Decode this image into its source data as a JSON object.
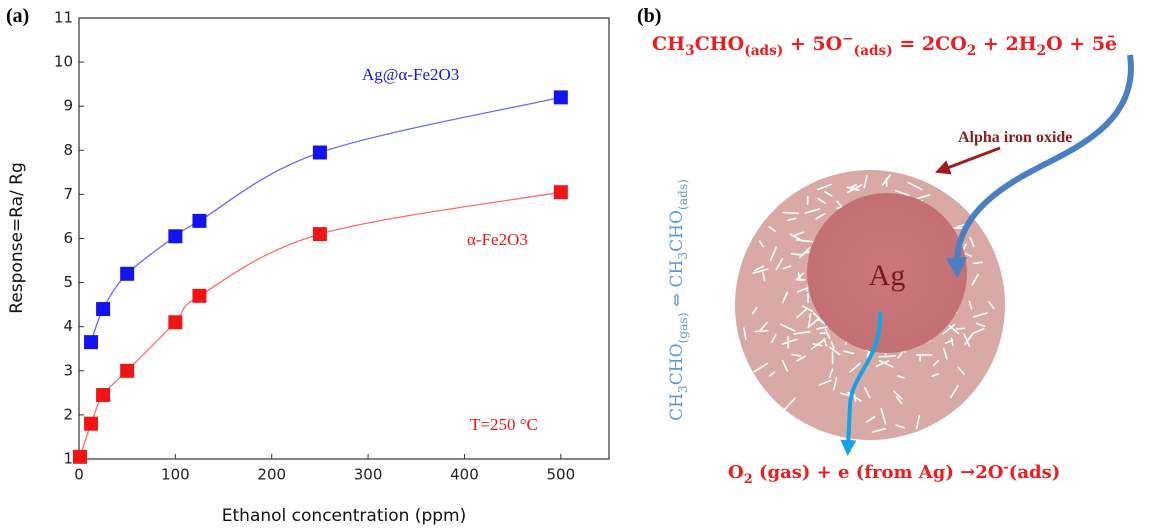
{
  "panels": [
    "(a)",
    "(b)"
  ],
  "chart_data": {
    "type": "scatter",
    "x_label": "Ethanol concentration (ppm)",
    "y_label": "Response=Ra/ Rg",
    "annotation": "T=250 °C",
    "xlim": [
      0,
      550
    ],
    "ylim": [
      1,
      11
    ],
    "xticks": [
      0,
      100,
      200,
      300,
      400,
      500
    ],
    "yticks": [
      1,
      2,
      3,
      4,
      5,
      6,
      7,
      8,
      9,
      10,
      11
    ],
    "fit_curves": true,
    "series": [
      {
        "name": "Ag@α-Fe2O3",
        "color": "#1414f0",
        "line_color": "#6a6aff",
        "x": [
          12.5,
          25,
          50,
          100,
          125,
          250,
          500
        ],
        "values": [
          3.65,
          4.4,
          5.2,
          6.05,
          6.4,
          7.95,
          9.2
        ]
      },
      {
        "name": "α-Fe2O3",
        "color": "#f01414",
        "line_color": "#ff6a6a",
        "x": [
          1,
          12.5,
          25,
          50,
          100,
          125,
          250,
          500
        ],
        "values": [
          1.05,
          1.8,
          2.45,
          3.0,
          4.1,
          4.7,
          6.1,
          7.05
        ]
      }
    ]
  },
  "diagram": {
    "equation": [
      {
        "text": "CH"
      },
      {
        "sub": "3"
      },
      {
        "text": "CHO"
      },
      {
        "sub": "(ads)"
      },
      {
        "text": " + 5O"
      },
      {
        "sup": "−"
      },
      {
        "sub": "(ads)"
      },
      {
        "text": " = 2CO"
      },
      {
        "sub": "2"
      },
      {
        "text": " + 2H"
      },
      {
        "sub": "2"
      },
      {
        "text": "O + 5ē"
      }
    ],
    "shell_label": "Alpha iron oxide",
    "core_label": "Ag",
    "adsorption": [
      {
        "text": "CH"
      },
      {
        "sub": "3"
      },
      {
        "text": "CHO"
      },
      {
        "sub": "(gas)"
      },
      {
        "text": " ⇔ CH"
      },
      {
        "sub": "3"
      },
      {
        "text": "CHO"
      },
      {
        "sub": "(ads)"
      }
    ],
    "reaction": [
      {
        "text": "O"
      },
      {
        "sub": "2"
      },
      {
        "text": " (gas) + e (from Ag) →2O"
      },
      {
        "sup": "-"
      },
      {
        "text": "(ads)"
      }
    ]
  }
}
